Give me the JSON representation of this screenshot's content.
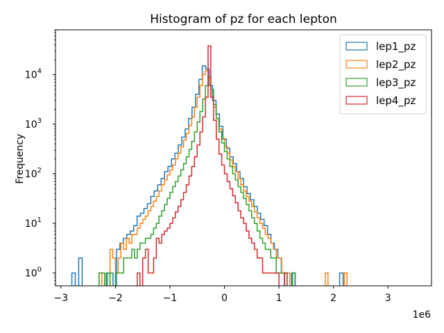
{
  "chart_data": {
    "type": "histogram",
    "title": "Histogram of pz for each lepton",
    "xlabel": "",
    "ylabel": "Frequency",
    "x_offset_label": "1e6",
    "x_scale_factor": 1000000,
    "xlim": [
      -3100000,
      3800000
    ],
    "ylim": [
      0.55,
      80000
    ],
    "yscale": "log",
    "grid": false,
    "legend_position": "top-right",
    "x_ticks": [
      {
        "value": -3000000,
        "label": "−3"
      },
      {
        "value": -2000000,
        "label": "−2"
      },
      {
        "value": -1000000,
        "label": "−1"
      },
      {
        "value": 0,
        "label": "0"
      },
      {
        "value": 1000000,
        "label": "1"
      },
      {
        "value": 2000000,
        "label": "2"
      },
      {
        "value": 3000000,
        "label": "3"
      }
    ],
    "y_ticks": [
      {
        "value": 1,
        "label": "10",
        "exp": "0"
      },
      {
        "value": 10,
        "label": "10",
        "exp": "1"
      },
      {
        "value": 100,
        "label": "10",
        "exp": "2"
      },
      {
        "value": 1000,
        "label": "10",
        "exp": "3"
      },
      {
        "value": 10000,
        "label": "10",
        "exp": "4"
      }
    ],
    "series": [
      {
        "name": "lep1_pz",
        "color": "#1f77b4",
        "bin_start": -2800000,
        "bin_width": 63000,
        "values": [
          1,
          0,
          2,
          0,
          0,
          0,
          0,
          0,
          0,
          0,
          1,
          1,
          0,
          3,
          4,
          5,
          6,
          7,
          9,
          14,
          16,
          20,
          25,
          35,
          45,
          60,
          80,
          110,
          140,
          200,
          260,
          380,
          550,
          800,
          1300,
          2200,
          4000,
          8000,
          15000,
          13000,
          6000,
          3000,
          1600,
          900,
          500,
          330,
          220,
          160,
          110,
          80,
          55,
          40,
          30,
          22,
          16,
          12,
          9,
          6,
          4,
          3,
          2,
          1,
          0,
          0,
          1,
          0,
          0,
          0,
          0,
          0,
          0,
          0,
          0,
          0,
          0,
          0,
          0,
          0,
          1
        ]
      },
      {
        "name": "lep2_pz",
        "color": "#ff7f0e",
        "bin_start": -2450000,
        "bin_width": 50000,
        "values": [
          0,
          0,
          0,
          1,
          0,
          0,
          0,
          3,
          2,
          1,
          2,
          4,
          3,
          5,
          4,
          6,
          6,
          8,
          10,
          12,
          14,
          18,
          22,
          28,
          35,
          45,
          60,
          75,
          95,
          120,
          150,
          200,
          260,
          350,
          480,
          650,
          950,
          1400,
          2200,
          3500,
          6000,
          10000,
          12000,
          8000,
          4000,
          2200,
          1300,
          800,
          520,
          360,
          260,
          190,
          140,
          110,
          80,
          60,
          45,
          35,
          28,
          22,
          17,
          13,
          10,
          8,
          6,
          5,
          4,
          3,
          2,
          2,
          1,
          1,
          1,
          0,
          0,
          0,
          0,
          0,
          0,
          0,
          0,
          0,
          0,
          0,
          0,
          0,
          1,
          0,
          0,
          0,
          0,
          0,
          0,
          1
        ]
      },
      {
        "name": "lep3_pz",
        "color": "#2ca02c",
        "bin_start": -2400000,
        "bin_width": 50000,
        "values": [
          0,
          0,
          1,
          1,
          0,
          1,
          0,
          0,
          1,
          1,
          1,
          2,
          2,
          2,
          3,
          2,
          3,
          4,
          4,
          5,
          5,
          6,
          8,
          10,
          14,
          18,
          24,
          32,
          42,
          55,
          70,
          90,
          120,
          160,
          220,
          310,
          450,
          700,
          1100,
          1800,
          3200,
          6000,
          9000,
          5000,
          2500,
          1300,
          700,
          420,
          280,
          200,
          140,
          100,
          75,
          55,
          42,
          32,
          24,
          18,
          13,
          10,
          7,
          5,
          4,
          3,
          3,
          2,
          2,
          1,
          1,
          1,
          1,
          0,
          0,
          1
        ]
      },
      {
        "name": "lep4_pz",
        "color": "#d62728",
        "bin_start": -1700000,
        "bin_width": 50000,
        "values": [
          0,
          0,
          1,
          0,
          2,
          3,
          1,
          1,
          2,
          5,
          4,
          6,
          7,
          8,
          10,
          13,
          17,
          22,
          30,
          42,
          60,
          90,
          140,
          220,
          380,
          700,
          1400,
          3500,
          38000,
          3500,
          1200,
          500,
          250,
          150,
          100,
          70,
          50,
          36,
          26,
          18,
          13,
          10,
          7,
          5,
          4,
          3,
          2,
          2,
          1,
          1,
          1,
          1,
          1,
          1,
          0,
          0,
          1
        ]
      }
    ]
  }
}
